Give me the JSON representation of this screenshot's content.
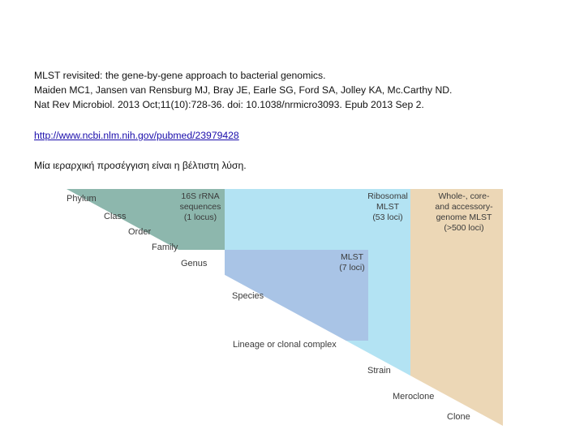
{
  "reference": {
    "title": "MLST revisited: the gene-by-gene approach to bacterial genomics.",
    "authors": "Maiden MC1, Jansen van Rensburg MJ, Bray JE, Earle SG, Ford SA, Jolley KA, Mc.Carthy ND.",
    "citation": "Nat Rev Microbiol. 2013 Oct;11(10):728-36. doi: 10.1038/nrmicro3093. Epub 2013 Sep 2."
  },
  "link": "http://www.ncbi.nlm.nih.gov/pubmed/23979428",
  "note": "Μία ιεραρχική προσέγγιση είναι η βέλτιστη λύση.",
  "figure": {
    "colors": {
      "rrna": "#8db7ad",
      "mlst": "#a9c4e6",
      "ribosomal": "#b3e3f3",
      "wgmlst": "#ecd7b6"
    },
    "ranks": [
      "Phylum",
      "Class",
      "Order",
      "Family",
      "Genus",
      "Species",
      "Lineage or clonal complex",
      "Strain",
      "Meroclone",
      "Clone"
    ],
    "methods": {
      "rrna": [
        "16S rRNA",
        "sequences",
        "(1 locus)"
      ],
      "mlst": [
        "MLST",
        "(7 loci)"
      ],
      "ribosomal": [
        "Ribosomal",
        "MLST",
        "(53 loci)"
      ],
      "wgmlst": [
        "Whole-, core-",
        "and accessory-",
        "genome MLST",
        "(>500 loci)"
      ]
    }
  }
}
